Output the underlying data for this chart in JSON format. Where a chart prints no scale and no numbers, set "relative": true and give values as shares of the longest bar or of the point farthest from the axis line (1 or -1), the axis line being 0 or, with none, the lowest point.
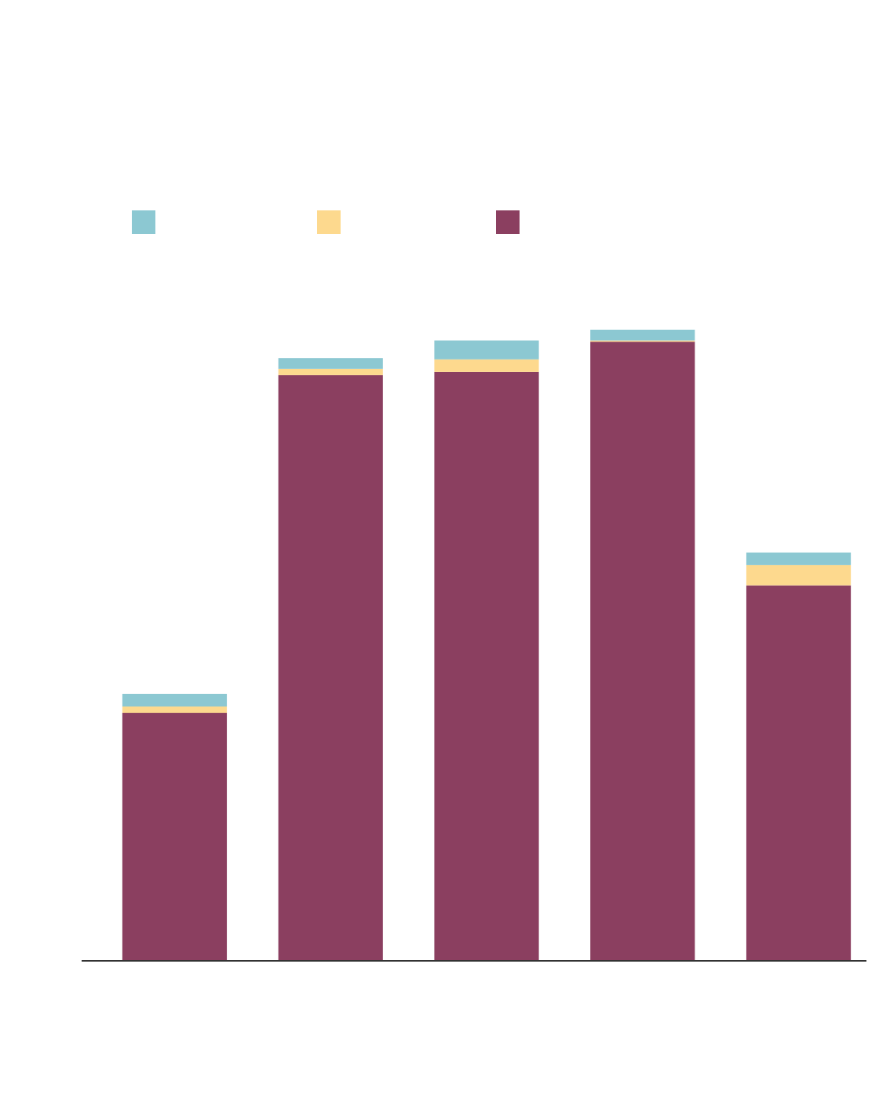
{
  "chart_data": {
    "type": "bar",
    "stacked": true,
    "relative": true,
    "categories": [
      null,
      null,
      null,
      null,
      null
    ],
    "series": [
      {
        "color": "#8b3f60",
        "values": [
          0.393,
          0.928,
          0.933,
          0.981,
          0.595
        ]
      },
      {
        "color": "#fdd98e",
        "values": [
          0.01,
          0.01,
          0.02,
          0.002,
          0.032
        ]
      },
      {
        "color": "#8cc8d2",
        "values": [
          0.02,
          0.017,
          0.03,
          0.017,
          0.02
        ]
      }
    ]
  }
}
